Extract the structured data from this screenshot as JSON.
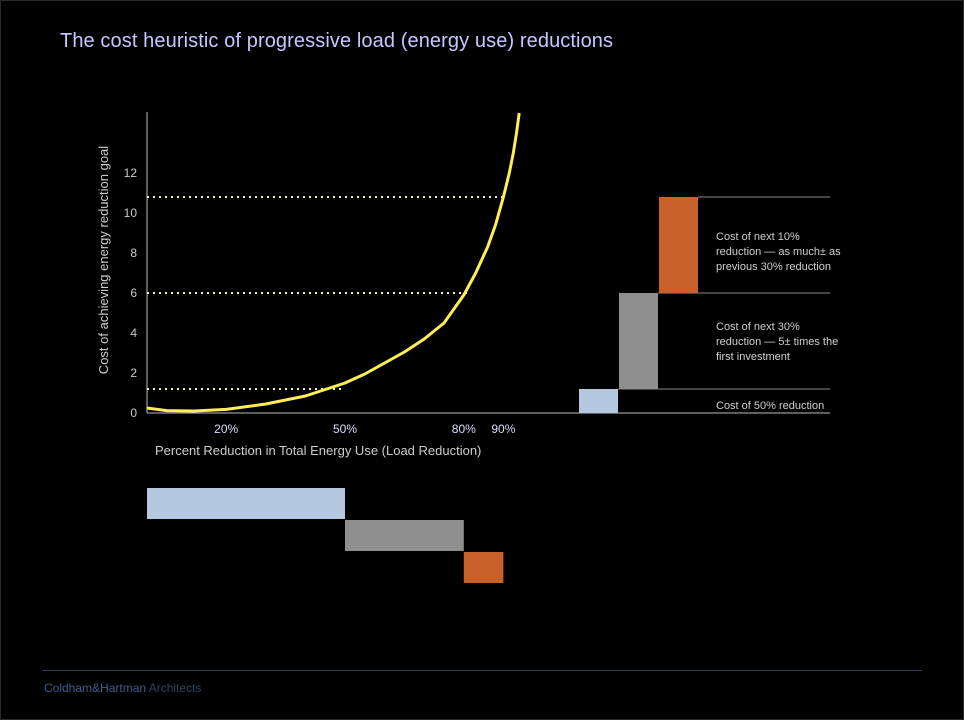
{
  "title": "The cost heuristic of progressive load (energy use) reductions",
  "footer": {
    "firm": "Coldham&Hartman",
    "suffix": " Architects"
  },
  "colors": {
    "background": "#000000",
    "title": "#c9c6ff",
    "curve": "#ffee55",
    "axis_text": "#cccccc",
    "x_tick_text": "#d8dcff",
    "bar_50": "#b4c8e0",
    "bar_next30": "#8f8f8f",
    "bar_next10": "#c8602a"
  },
  "chart_data": {
    "type": "line",
    "ylabel": "Cost of achieving energy reduction goal",
    "xlabel": "Percent Reduction in Total Energy Use (Load Reduction)",
    "y_ticks": [
      "0",
      "2",
      "4",
      "6",
      "8",
      "10",
      "12"
    ],
    "x_ticks": [
      {
        "value": 20,
        "label": "20%"
      },
      {
        "value": 50,
        "label": "50%"
      },
      {
        "value": 80,
        "label": "80%"
      },
      {
        "value": 90,
        "label": "90%"
      }
    ],
    "xlim": [
      0,
      95
    ],
    "ylim": [
      0,
      15
    ],
    "curve": {
      "x": [
        0,
        5,
        12,
        20,
        30,
        40,
        50,
        55,
        60,
        65,
        70,
        75,
        80,
        83,
        86,
        88,
        90,
        91.5,
        92.5,
        93.3,
        94
      ],
      "y": [
        0.25,
        0.12,
        0.1,
        0.18,
        0.45,
        0.85,
        1.5,
        1.95,
        2.5,
        3.05,
        3.7,
        4.5,
        5.9,
        7.0,
        8.3,
        9.4,
        10.8,
        12.0,
        13.0,
        14.0,
        15.0
      ]
    },
    "reference_lines": [
      {
        "y": 1.2,
        "x_end": 50
      },
      {
        "y": 6.0,
        "x_end": 81
      },
      {
        "y": 10.8,
        "x_end": 90
      }
    ],
    "cost_steps": [
      {
        "label": "Cost of 50% reduction",
        "from": 0,
        "to": 1.2
      },
      {
        "label": "Cost of next 30% reduction — 5± times the first investment",
        "from": 1.2,
        "to": 6.0
      },
      {
        "label": "Cost of next 10% reduction — as much± as previous 30% reduction",
        "from": 6.0,
        "to": 10.8
      }
    ],
    "step_labels": {
      "s50": [
        "Cost of 50% reduction"
      ],
      "s30": [
        "Cost of next 30%",
        "reduction — 5± times the",
        "first investment"
      ],
      "s10": [
        "Cost of next 10%",
        "reduction — as much± as",
        "previous 30% reduction"
      ]
    },
    "reduction_segments": [
      {
        "from": 0,
        "to": 50
      },
      {
        "from": 50,
        "to": 80
      },
      {
        "from": 80,
        "to": 90
      }
    ]
  }
}
